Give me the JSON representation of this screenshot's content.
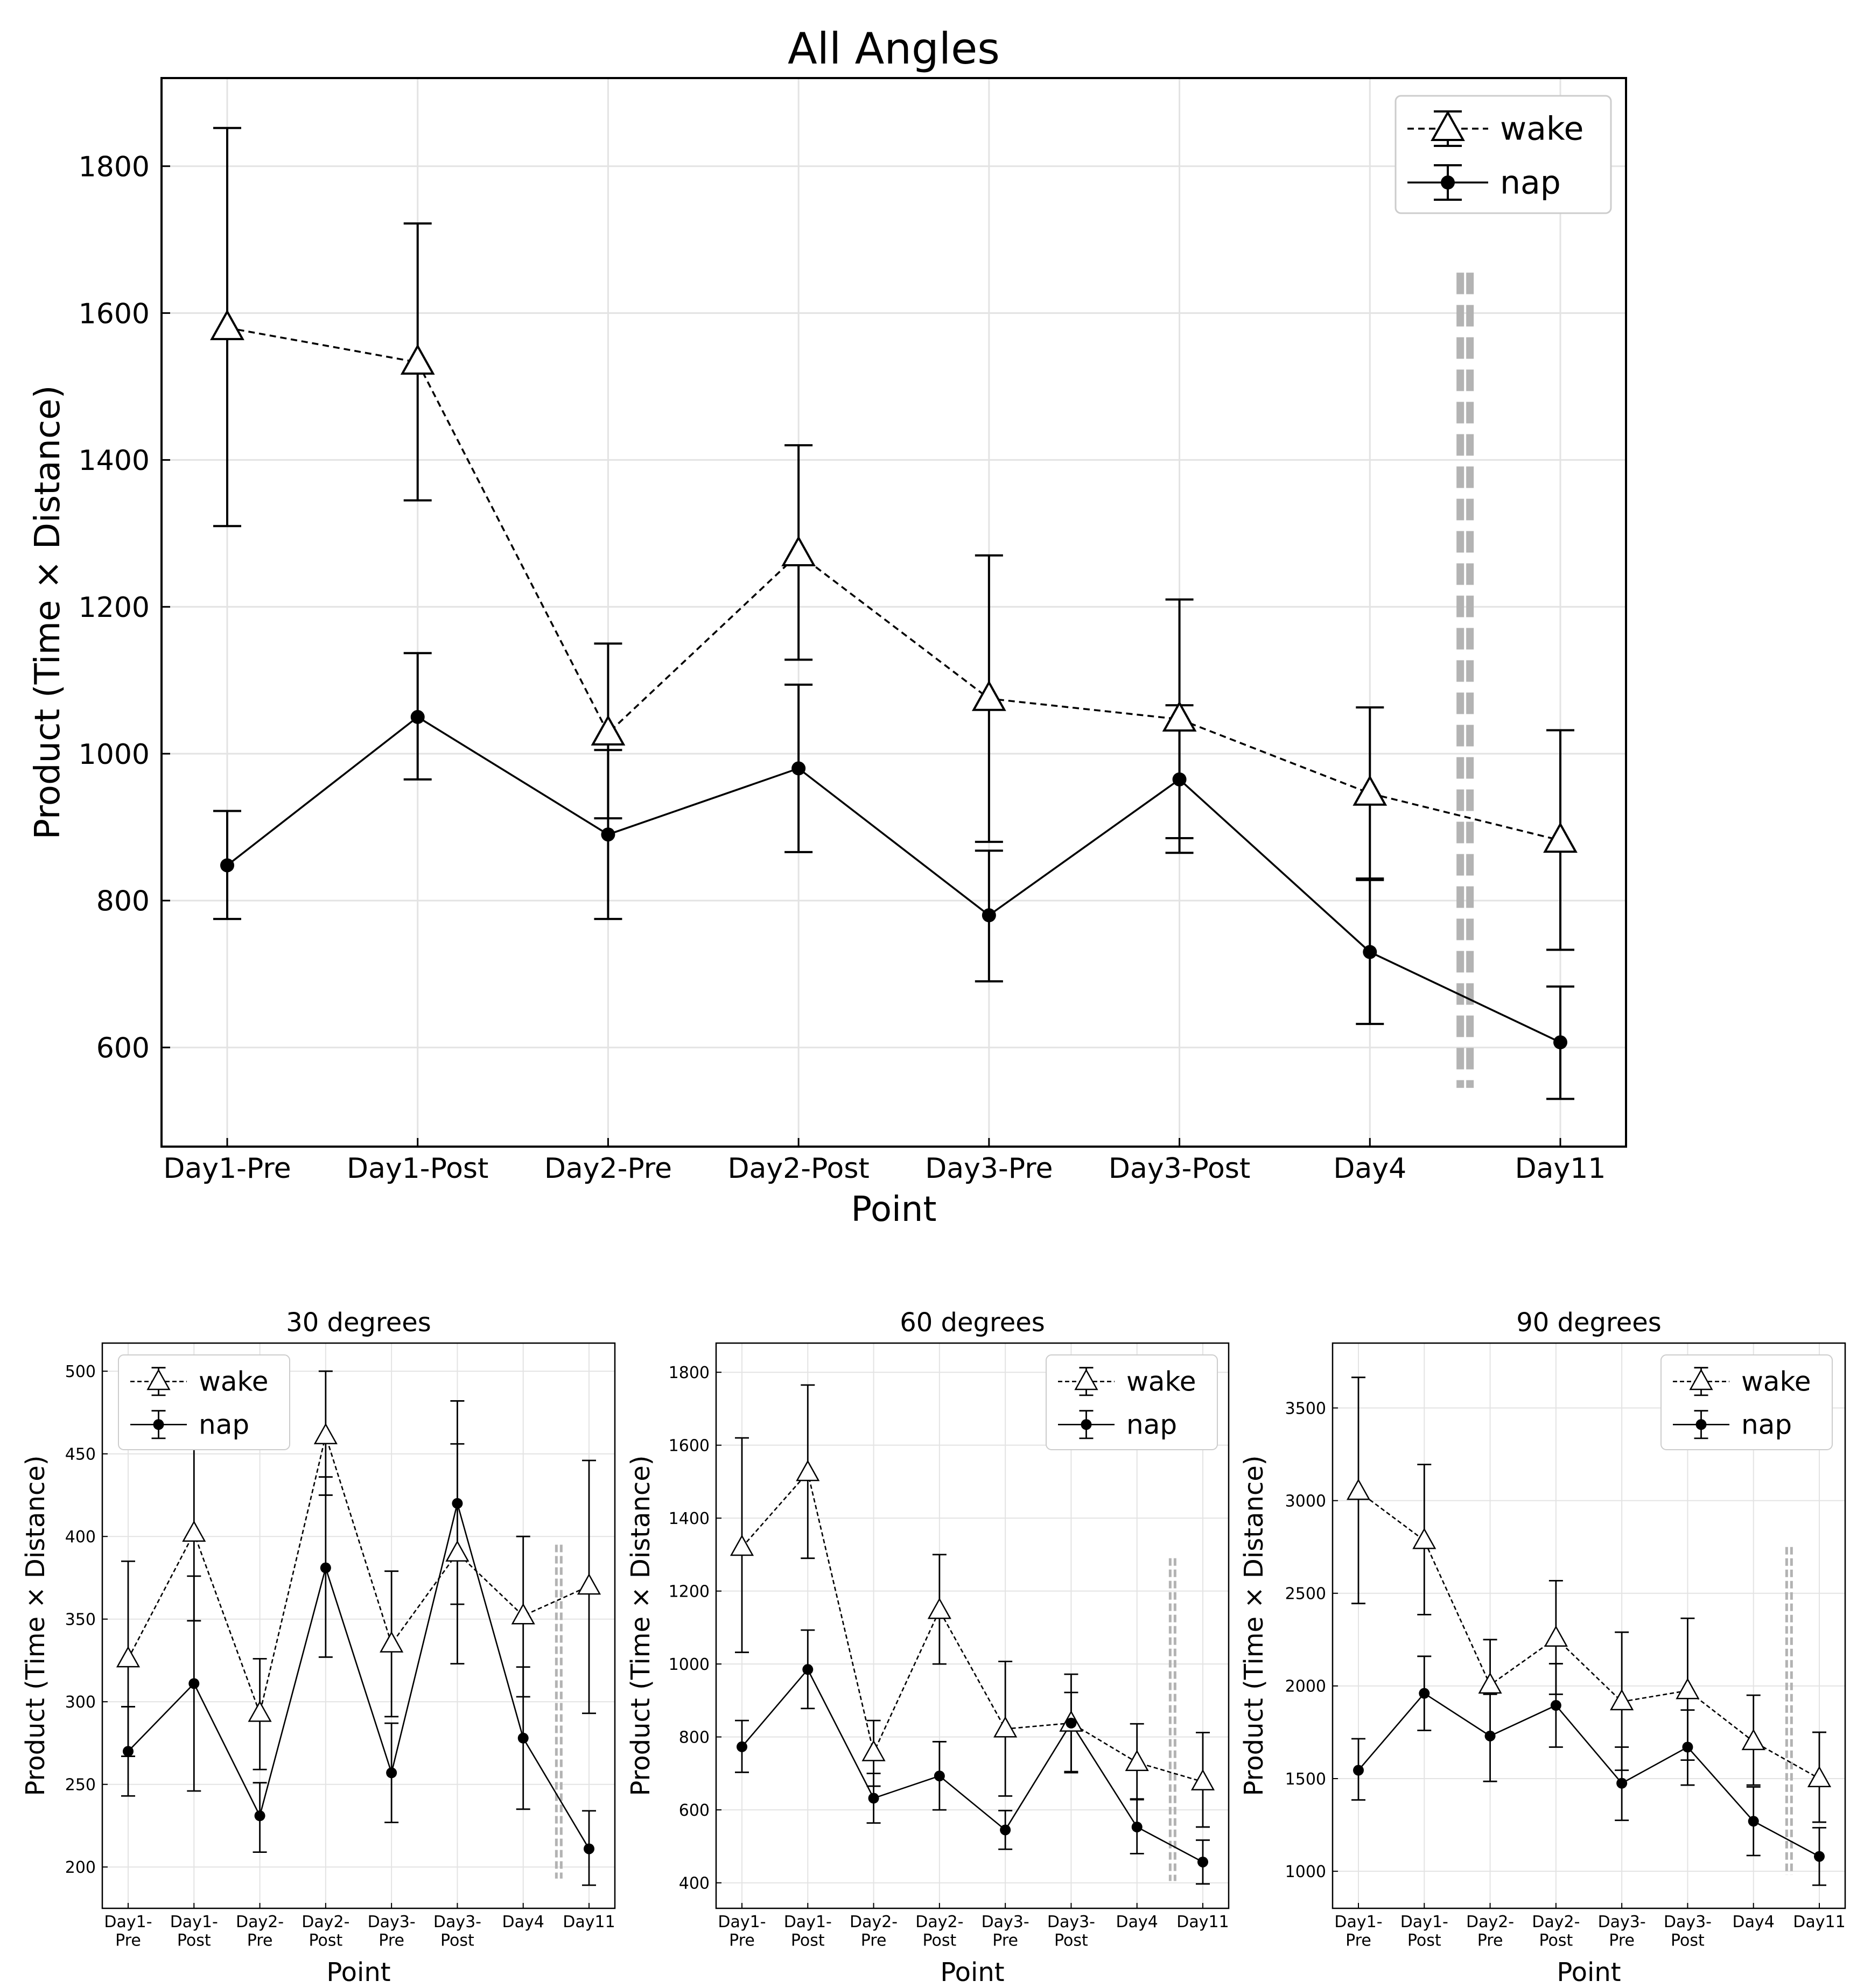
{
  "series_styles": {
    "wake": {
      "line": "#000000",
      "dash": "dashed",
      "marker": "triangle",
      "fill": "#ffffff"
    },
    "nap": {
      "line": "#000000",
      "dash": "solid",
      "marker": "circle",
      "fill": "#000000"
    },
    "divider_color": "#b3b3b3"
  },
  "chart_data": [
    {
      "type": "line",
      "title": "All Angles",
      "xlabel": "Point",
      "ylabel": "Product (Time × Distance)",
      "categories": [
        "Day1-Pre",
        "Day1-Post",
        "Day2-Pre",
        "Day2-Post",
        "Day3-Pre",
        "Day3-Post",
        "Day4",
        "Day11"
      ],
      "ylim": [
        465,
        1920
      ],
      "yticks": [
        600,
        800,
        1000,
        1200,
        1400,
        1600,
        1800
      ],
      "grid": true,
      "legend": "top-right",
      "divider_between": [
        6,
        7
      ],
      "divider_range": [
        545,
        1655
      ],
      "series": [
        {
          "name": "wake",
          "values": [
            1580,
            1533,
            1028,
            1272,
            1075,
            1047,
            946,
            882
          ],
          "err_low": [
            1310,
            1345,
            912,
            1128,
            880,
            885,
            830,
            733
          ],
          "err_high": [
            1852,
            1722,
            1150,
            1420,
            1270,
            1210,
            1063,
            1032
          ]
        },
        {
          "name": "nap",
          "values": [
            848,
            1050,
            890,
            980,
            780,
            965,
            730,
            607
          ],
          "err_low": [
            775,
            965,
            775,
            866,
            690,
            865,
            632,
            530
          ],
          "err_high": [
            922,
            1137,
            1005,
            1094,
            868,
            1066,
            828,
            683
          ]
        }
      ]
    },
    {
      "type": "line",
      "title": "30 degrees",
      "xlabel": "Point",
      "ylabel": "Product (Time × Distance)",
      "categories": [
        "Day1-Pre",
        "Day1-Post",
        "Day2-Pre",
        "Day2-Post",
        "Day3-Pre",
        "Day3-Post",
        "Day4",
        "Day11"
      ],
      "ylim": [
        175,
        517
      ],
      "yticks": [
        200,
        250,
        300,
        350,
        400,
        450,
        500
      ],
      "grid": true,
      "legend": "top-left",
      "divider_between": [
        6,
        7
      ],
      "divider_range": [
        193,
        395
      ],
      "series": [
        {
          "name": "wake",
          "values": [
            326,
            402,
            293,
            461,
            335,
            390,
            352,
            370
          ],
          "err_low": [
            267,
            349,
            259,
            425,
            291,
            323,
            303,
            293
          ],
          "err_high": [
            385,
            456,
            326,
            500,
            379,
            456,
            400,
            446
          ]
        },
        {
          "name": "nap",
          "values": [
            270,
            311,
            231,
            381,
            257,
            420,
            278,
            211
          ],
          "err_low": [
            243,
            246,
            209,
            327,
            227,
            359,
            235,
            189
          ],
          "err_high": [
            297,
            376,
            251,
            436,
            287,
            482,
            321,
            234
          ]
        }
      ]
    },
    {
      "type": "line",
      "title": "60 degrees",
      "xlabel": "Point",
      "ylabel": "Product (Time × Distance)",
      "categories": [
        "Day1-Pre",
        "Day1-Post",
        "Day2-Pre",
        "Day2-Post",
        "Day3-Pre",
        "Day3-Post",
        "Day4",
        "Day11"
      ],
      "ylim": [
        330,
        1880
      ],
      "yticks": [
        400,
        600,
        800,
        1000,
        1200,
        1400,
        1600,
        1800
      ],
      "grid": true,
      "legend": "top-right",
      "divider_between": [
        6,
        7
      ],
      "divider_range": [
        405,
        1290
      ],
      "series": [
        {
          "name": "wake",
          "values": [
            1320,
            1525,
            757,
            1147,
            822,
            838,
            730,
            677
          ],
          "err_low": [
            1032,
            1290,
            665,
            1000,
            638,
            705,
            630,
            553
          ],
          "err_high": [
            1620,
            1765,
            845,
            1300,
            1007,
            972,
            836,
            812
          ]
        },
        {
          "name": "nap",
          "values": [
            773,
            985,
            632,
            693,
            545,
            838,
            553,
            457
          ],
          "err_low": [
            703,
            878,
            564,
            600,
            492,
            702,
            480,
            397
          ],
          "err_high": [
            845,
            1093,
            700,
            787,
            598,
            922,
            628,
            517
          ]
        }
      ]
    },
    {
      "type": "line",
      "title": "90 degrees",
      "xlabel": "Point",
      "ylabel": "Product (Time × Distance)",
      "categories": [
        "Day1-Pre",
        "Day1-Post",
        "Day2-Pre",
        "Day2-Post",
        "Day3-Pre",
        "Day3-Post",
        "Day4",
        "Day11"
      ],
      "ylim": [
        800,
        3850
      ],
      "yticks": [
        1000,
        1500,
        2000,
        2500,
        3000,
        3500
      ],
      "grid": true,
      "legend": "top-right",
      "divider_between": [
        6,
        7
      ],
      "divider_range": [
        980,
        2750
      ],
      "series": [
        {
          "name": "wake",
          "values": [
            3050,
            2785,
            2005,
            2258,
            1915,
            1975,
            1700,
            1500
          ],
          "err_low": [
            2445,
            2385,
            1955,
            1955,
            1545,
            1600,
            1465,
            1265
          ],
          "err_high": [
            3665,
            3195,
            2250,
            2568,
            2290,
            2365,
            1950,
            1750
          ]
        },
        {
          "name": "nap",
          "values": [
            1545,
            1960,
            1730,
            1895,
            1475,
            1670,
            1270,
            1080
          ],
          "err_low": [
            1385,
            1760,
            1485,
            1670,
            1275,
            1465,
            1085,
            925
          ],
          "err_high": [
            1715,
            2160,
            1970,
            2120,
            1670,
            1870,
            1455,
            1235
          ]
        }
      ]
    }
  ]
}
